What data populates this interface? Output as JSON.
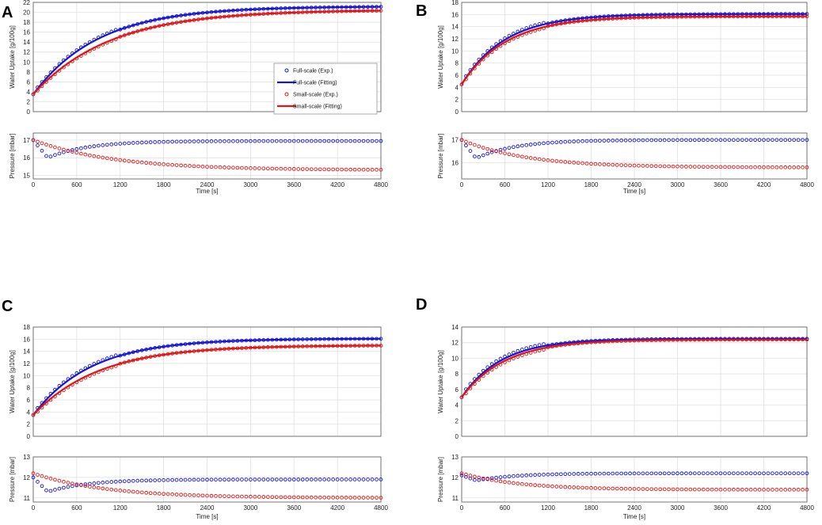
{
  "colors": {
    "full_scale": "#1515d6",
    "small_scale": "#e01515",
    "grid": "#dcdcdc",
    "frame": "#555555"
  },
  "chart_data": [
    {
      "panel": "A",
      "type": "scatter+line",
      "x_ticks": [
        0,
        600,
        1200,
        1800,
        2400,
        3000,
        3600,
        4200,
        4800
      ],
      "xlabel": "Time [s]",
      "uptake": {
        "ylabel": "Water Uptake [g/100g]",
        "ylim": [
          0,
          22
        ],
        "y_ticks": [
          0,
          2,
          4,
          6,
          8,
          10,
          12,
          14,
          16,
          18,
          20,
          22
        ],
        "full": {
          "start": 3.5,
          "end": 21.2,
          "tau": 900
        },
        "small": {
          "start": 3.5,
          "end": 20.5,
          "tau": 1050
        }
      },
      "pressure": {
        "ylabel": "Pressure [mbar]",
        "ylim": [
          14.8,
          17.4
        ],
        "y_ticks": [
          15,
          16,
          17
        ],
        "full": {
          "start": 17.0,
          "min": 16.0,
          "end": 16.95
        },
        "small": {
          "start": 17.0,
          "end": 15.3,
          "tau": 1100
        }
      },
      "legend": {
        "position": "right-center",
        "entries": [
          {
            "label": "Full-scale (Exp.)",
            "kind": "marker",
            "series": "full"
          },
          {
            "label": "Full-scale (Fitting)",
            "kind": "line",
            "series": "full"
          },
          {
            "label": "Small-scale (Exp.)",
            "kind": "marker",
            "series": "small"
          },
          {
            "label": "Small-scale (Fitting)",
            "kind": "line",
            "series": "small"
          }
        ]
      }
    },
    {
      "panel": "B",
      "type": "scatter+line",
      "x_ticks": [
        0,
        600,
        1200,
        1800,
        2400,
        3000,
        3600,
        4200,
        4800
      ],
      "xlabel": "Time [s]",
      "uptake": {
        "ylabel": "Water Uptake [g/100g]",
        "ylim": [
          0,
          18
        ],
        "y_ticks": [
          0,
          2,
          4,
          6,
          8,
          10,
          12,
          14,
          16,
          18
        ],
        "full": {
          "start": 4.5,
          "end": 16.1,
          "tau": 600
        },
        "small": {
          "start": 4.5,
          "end": 15.7,
          "tau": 620
        }
      },
      "pressure": {
        "ylabel": "Pressure [mbar]",
        "ylim": [
          15.3,
          17.3
        ],
        "y_ticks": [
          16,
          17
        ],
        "full": {
          "start": 17.0,
          "min": 16.2,
          "end": 17.0
        },
        "small": {
          "start": 17.0,
          "end": 15.8,
          "tau": 900
        }
      }
    },
    {
      "panel": "C",
      "type": "scatter+line",
      "x_ticks": [
        0,
        600,
        1200,
        1800,
        2400,
        3000,
        3600,
        4200,
        4800
      ],
      "xlabel": "Time [s]",
      "uptake": {
        "ylabel": "Water Uptake [g/100g]",
        "ylim": [
          0,
          18
        ],
        "y_ticks": [
          0,
          2,
          4,
          6,
          8,
          10,
          12,
          14,
          16,
          18
        ],
        "full": {
          "start": 3.5,
          "end": 16.1,
          "tau": 800
        },
        "small": {
          "start": 3.5,
          "end": 15.0,
          "tau": 900
        }
      },
      "pressure": {
        "ylabel": "Pressure [mbar]",
        "ylim": [
          10.8,
          13.0
        ],
        "y_ticks": [
          11,
          12,
          13
        ],
        "full": {
          "start": 12.0,
          "min": 11.3,
          "end": 11.9
        },
        "small": {
          "start": 12.2,
          "end": 11.0,
          "tau": 1000
        }
      }
    },
    {
      "panel": "D",
      "type": "scatter+line",
      "x_ticks": [
        0,
        600,
        1200,
        1800,
        2400,
        3000,
        3600,
        4200,
        4800
      ],
      "xlabel": "Time [s]",
      "uptake": {
        "ylabel": "Water Uptake [g/100g]",
        "ylim": [
          0,
          14
        ],
        "y_ticks": [
          0,
          2,
          4,
          6,
          8,
          10,
          12,
          14
        ],
        "full": {
          "start": 5.0,
          "end": 12.5,
          "tau": 550
        },
        "small": {
          "start": 5.0,
          "end": 12.4,
          "tau": 600
        }
      },
      "pressure": {
        "ylabel": "Pressure [mbar]",
        "ylim": [
          10.8,
          13.0
        ],
        "y_ticks": [
          11,
          12,
          13
        ],
        "full": {
          "start": 12.1,
          "min": 11.85,
          "end": 12.2
        },
        "small": {
          "start": 12.2,
          "end": 11.4,
          "tau": 800
        }
      }
    }
  ]
}
